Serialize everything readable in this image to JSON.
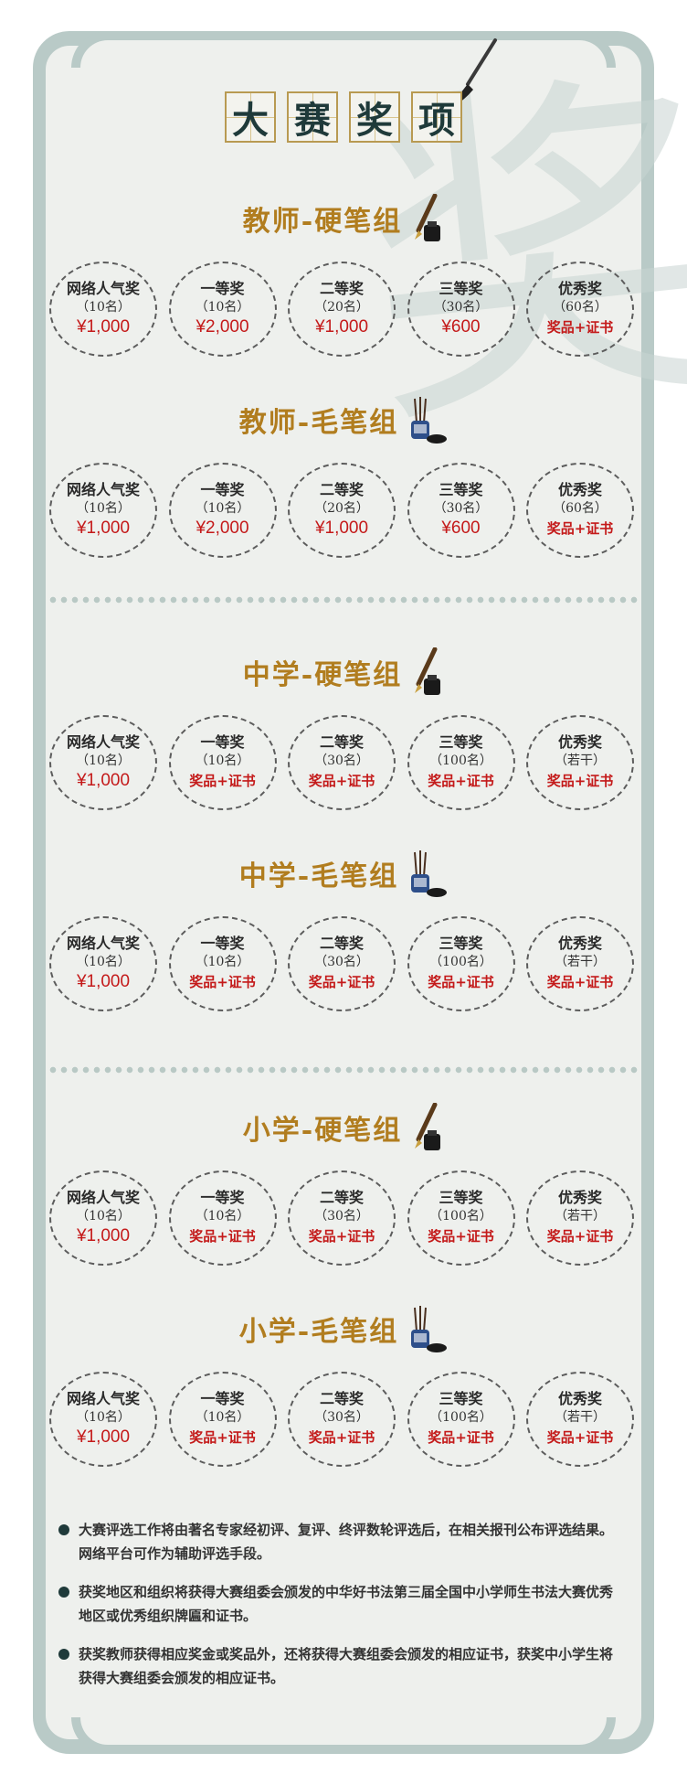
{
  "title_chars": [
    "大",
    "赛",
    "奖",
    "项"
  ],
  "bg_glyph": "奖",
  "colors": {
    "frame": "#b9cac7",
    "panel": "#eef0ed",
    "accent": "#b17d1f",
    "prize": "#c41a1a"
  },
  "groups": [
    {
      "title": "教师-硬笔组",
      "icon": "fountain-pen-icon",
      "awards": [
        {
          "name": "网络人气奖",
          "count": "（10名）",
          "prize": "¥1,000"
        },
        {
          "name": "一等奖",
          "count": "（10名）",
          "prize": "¥2,000"
        },
        {
          "name": "二等奖",
          "count": "（20名）",
          "prize": "¥1,000"
        },
        {
          "name": "三等奖",
          "count": "（30名）",
          "prize": "¥600"
        },
        {
          "name": "优秀奖",
          "count": "（60名）",
          "prize": "奖品+证书"
        }
      ]
    },
    {
      "title": "教师-毛笔组",
      "icon": "brush-pot-icon",
      "awards": [
        {
          "name": "网络人气奖",
          "count": "（10名）",
          "prize": "¥1,000"
        },
        {
          "name": "一等奖",
          "count": "（10名）",
          "prize": "¥2,000"
        },
        {
          "name": "二等奖",
          "count": "（20名）",
          "prize": "¥1,000"
        },
        {
          "name": "三等奖",
          "count": "（30名）",
          "prize": "¥600"
        },
        {
          "name": "优秀奖",
          "count": "（60名）",
          "prize": "奖品+证书"
        }
      ]
    },
    {
      "title": "中学-硬笔组",
      "icon": "fountain-pen-icon",
      "awards": [
        {
          "name": "网络人气奖",
          "count": "（10名）",
          "prize": "¥1,000"
        },
        {
          "name": "一等奖",
          "count": "（10名）",
          "prize": "奖品+证书"
        },
        {
          "name": "二等奖",
          "count": "（30名）",
          "prize": "奖品+证书"
        },
        {
          "name": "三等奖",
          "count": "（100名）",
          "prize": "奖品+证书"
        },
        {
          "name": "优秀奖",
          "count": "（若干）",
          "prize": "奖品+证书"
        }
      ]
    },
    {
      "title": "中学-毛笔组",
      "icon": "brush-pot-icon",
      "awards": [
        {
          "name": "网络人气奖",
          "count": "（10名）",
          "prize": "¥1,000"
        },
        {
          "name": "一等奖",
          "count": "（10名）",
          "prize": "奖品+证书"
        },
        {
          "name": "二等奖",
          "count": "（30名）",
          "prize": "奖品+证书"
        },
        {
          "name": "三等奖",
          "count": "（100名）",
          "prize": "奖品+证书"
        },
        {
          "name": "优秀奖",
          "count": "（若干）",
          "prize": "奖品+证书"
        }
      ]
    },
    {
      "title": "小学-硬笔组",
      "icon": "fountain-pen-icon",
      "awards": [
        {
          "name": "网络人气奖",
          "count": "（10名）",
          "prize": "¥1,000"
        },
        {
          "name": "一等奖",
          "count": "（10名）",
          "prize": "奖品+证书"
        },
        {
          "name": "二等奖",
          "count": "（30名）",
          "prize": "奖品+证书"
        },
        {
          "name": "三等奖",
          "count": "（100名）",
          "prize": "奖品+证书"
        },
        {
          "name": "优秀奖",
          "count": "（若干）",
          "prize": "奖品+证书"
        }
      ]
    },
    {
      "title": "小学-毛笔组",
      "icon": "brush-pot-icon",
      "awards": [
        {
          "name": "网络人气奖",
          "count": "（10名）",
          "prize": "¥1,000"
        },
        {
          "name": "一等奖",
          "count": "（10名）",
          "prize": "奖品+证书"
        },
        {
          "name": "二等奖",
          "count": "（30名）",
          "prize": "奖品+证书"
        },
        {
          "name": "三等奖",
          "count": "（100名）",
          "prize": "奖品+证书"
        },
        {
          "name": "优秀奖",
          "count": "（若干）",
          "prize": "奖品+证书"
        }
      ]
    }
  ],
  "notes": [
    "大赛评选工作将由著名专家经初评、复评、终评数轮评选后，在相关报刊公布评选结果。网络平台可作为辅助评选手段。",
    "获奖地区和组织将获得大赛组委会颁发的中华好书法第三届全国中小学师生书法大赛优秀地区或优秀组织牌匾和证书。",
    "获奖教师获得相应奖金或奖品外，还将获得大赛组委会颁发的相应证书，获奖中小学生将获得大赛组委会颁发的相应证书。"
  ]
}
